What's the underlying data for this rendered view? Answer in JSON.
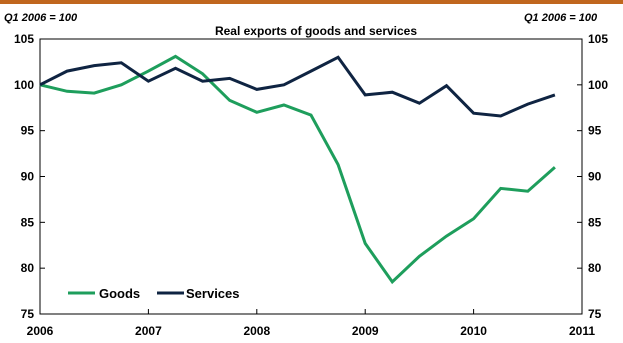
{
  "chart_data": {
    "type": "line",
    "title": "Real exports of goods and services",
    "unit_left": "Q1 2006 = 100",
    "unit_right": "Q1 2006 = 100",
    "ylim": [
      75,
      105
    ],
    "yticks": [
      75,
      80,
      85,
      90,
      95,
      100,
      105
    ],
    "xlim": [
      2006,
      2011
    ],
    "xticks": [
      2006,
      2007,
      2008,
      2009,
      2010,
      2011
    ],
    "grid": false,
    "legend_position": "bottom-left",
    "colors": {
      "Goods": "#1e9e5c",
      "Services": "#0f2442",
      "accent_rule": "#c0661e"
    },
    "x": [
      2006.0,
      2006.25,
      2006.5,
      2006.75,
      2007.0,
      2007.25,
      2007.5,
      2007.75,
      2008.0,
      2008.25,
      2008.5,
      2008.75,
      2009.0,
      2009.25,
      2009.5,
      2009.75,
      2010.0,
      2010.25,
      2010.5,
      2010.75
    ],
    "series": [
      {
        "name": "Goods",
        "values": [
          100.0,
          99.3,
          99.1,
          100.0,
          101.5,
          103.1,
          101.2,
          98.3,
          97.0,
          97.8,
          96.7,
          91.3,
          82.7,
          78.5,
          81.3,
          83.5,
          85.4,
          88.7,
          88.4,
          91.0
        ]
      },
      {
        "name": "Services",
        "values": [
          100.0,
          101.5,
          102.1,
          102.4,
          100.4,
          101.8,
          100.4,
          100.7,
          99.5,
          100.0,
          101.5,
          103.0,
          98.9,
          99.2,
          98.0,
          99.9,
          96.9,
          96.6,
          97.9,
          98.9
        ]
      }
    ]
  }
}
